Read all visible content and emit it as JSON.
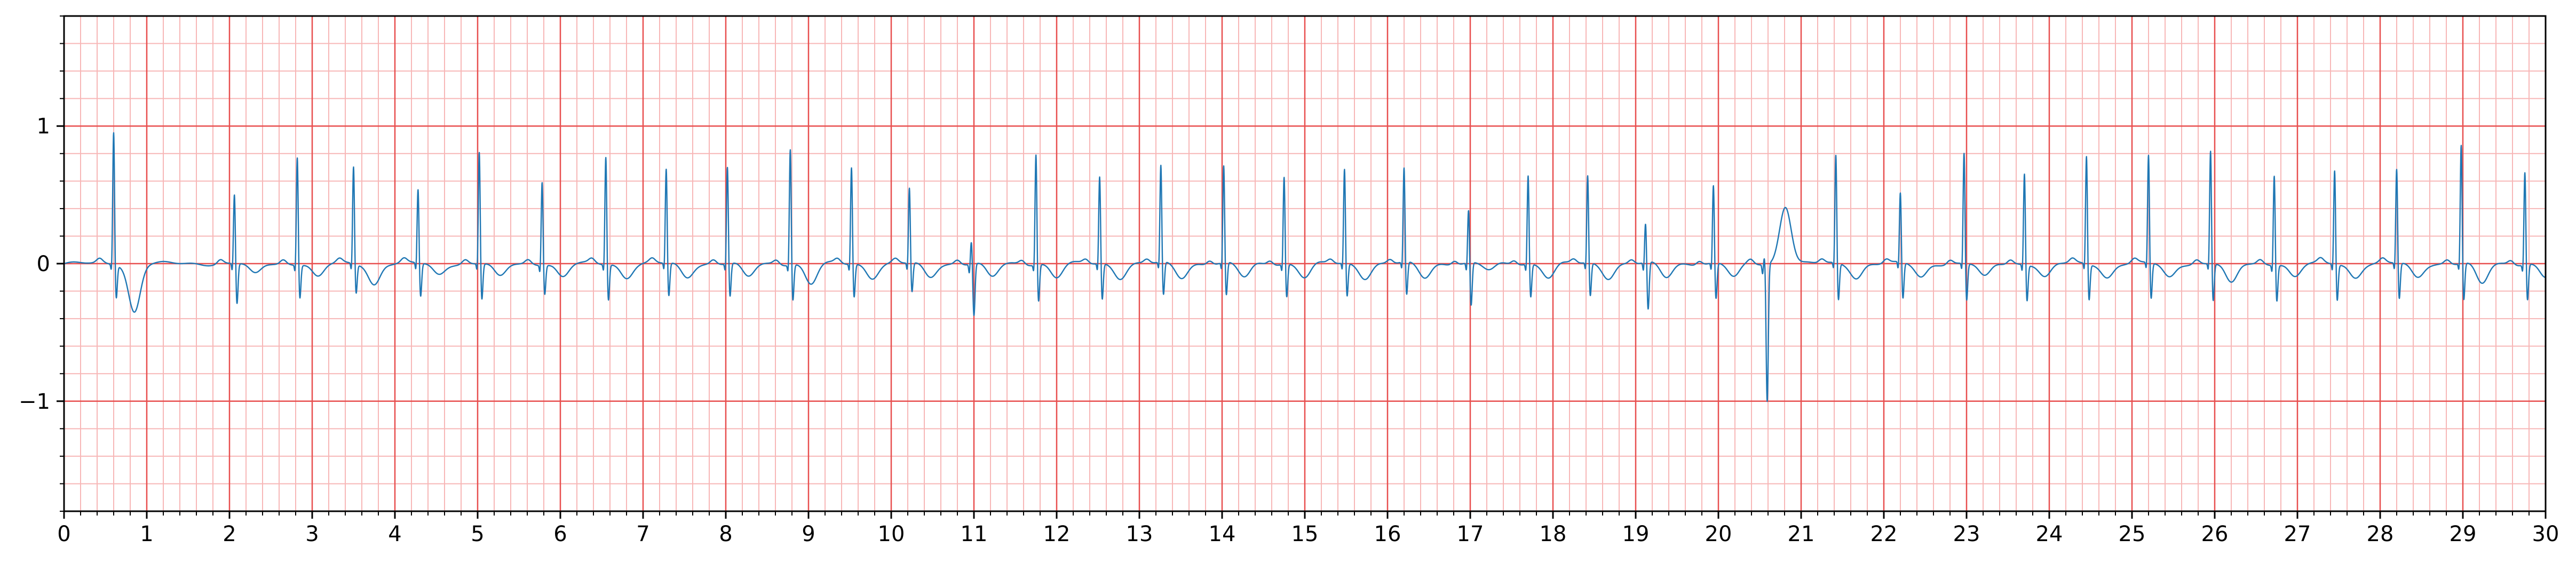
{
  "chart_data": {
    "type": "line",
    "title": "",
    "xlabel": "",
    "ylabel": "",
    "xlim": [
      0,
      30
    ],
    "ylim": [
      -1.8,
      1.8
    ],
    "x_ticks": [
      0,
      1,
      2,
      3,
      4,
      5,
      6,
      7,
      8,
      9,
      10,
      11,
      12,
      13,
      14,
      15,
      16,
      17,
      18,
      19,
      20,
      21,
      22,
      23,
      24,
      25,
      26,
      27,
      28,
      29,
      30
    ],
    "x_tick_labels": [
      "0",
      "1",
      "2",
      "3",
      "4",
      "5",
      "6",
      "7",
      "8",
      "9",
      "10",
      "11",
      "12",
      "13",
      "14",
      "15",
      "16",
      "17",
      "18",
      "19",
      "20",
      "21",
      "22",
      "23",
      "24",
      "25",
      "26",
      "27",
      "28",
      "29",
      "30"
    ],
    "y_ticks": [
      -1,
      0,
      1
    ],
    "y_tick_labels": [
      "−1",
      "0",
      "1"
    ],
    "grid": {
      "major": true,
      "minor": true,
      "major_x_step": 1,
      "major_y_step": 1,
      "minor_x_step": 0.2,
      "minor_y_step": 0.2,
      "major_color": "#e84f4f",
      "minor_color": "#f7b7b7"
    },
    "line_color": "#1f77b4",
    "background": "#ffffff",
    "series": [
      {
        "beats": [
          {
            "t": 0.6,
            "r": 0.98,
            "s": -0.25,
            "t_wave": -0.35
          },
          {
            "t": 2.06,
            "r": 0.52,
            "s": -0.3,
            "t_wave": -0.08
          },
          {
            "t": 2.82,
            "r": 0.8,
            "s": -0.25,
            "t_wave": -0.1
          },
          {
            "t": 3.5,
            "r": 0.72,
            "s": -0.22,
            "t_wave": -0.15
          },
          {
            "t": 4.28,
            "r": 0.55,
            "s": -0.25,
            "t_wave": -0.08
          },
          {
            "t": 5.02,
            "r": 0.83,
            "s": -0.27,
            "t_wave": -0.1
          },
          {
            "t": 5.78,
            "r": 0.62,
            "s": -0.22,
            "t_wave": -0.1
          },
          {
            "t": 6.55,
            "r": 0.8,
            "s": -0.27,
            "t_wave": -0.1
          },
          {
            "t": 7.28,
            "r": 0.7,
            "s": -0.25,
            "t_wave": -0.1
          },
          {
            "t": 8.02,
            "r": 0.72,
            "s": -0.25,
            "t_wave": -0.1
          },
          {
            "t": 8.78,
            "r": 0.86,
            "s": -0.27,
            "t_wave": -0.15
          },
          {
            "t": 9.52,
            "r": 0.72,
            "s": -0.25,
            "t_wave": -0.1
          },
          {
            "t": 10.22,
            "r": 0.56,
            "s": -0.22,
            "t_wave": -0.1
          },
          {
            "t": 10.97,
            "r": 0.18,
            "s": -0.38,
            "t_wave": -0.1
          },
          {
            "t": 11.75,
            "r": 0.82,
            "s": -0.28,
            "t_wave": -0.1
          },
          {
            "t": 12.52,
            "r": 0.65,
            "s": -0.27,
            "t_wave": -0.1
          },
          {
            "t": 13.26,
            "r": 0.72,
            "s": -0.25,
            "t_wave": -0.1
          },
          {
            "t": 14.02,
            "r": 0.72,
            "s": -0.25,
            "t_wave": -0.1
          },
          {
            "t": 14.75,
            "r": 0.65,
            "s": -0.25,
            "t_wave": -0.1
          },
          {
            "t": 15.48,
            "r": 0.7,
            "s": -0.25,
            "t_wave": -0.1
          },
          {
            "t": 16.2,
            "r": 0.7,
            "s": -0.25,
            "t_wave": -0.1
          },
          {
            "t": 16.98,
            "r": 0.4,
            "s": -0.32,
            "t_wave": -0.05
          },
          {
            "t": 17.7,
            "r": 0.66,
            "s": -0.25,
            "t_wave": -0.1
          },
          {
            "t": 18.42,
            "r": 0.65,
            "s": -0.25,
            "t_wave": -0.1
          },
          {
            "t": 19.12,
            "r": 0.3,
            "s": -0.35,
            "t_wave": -0.1
          },
          {
            "t": 19.94,
            "r": 0.58,
            "s": -0.27,
            "t_wave": -0.1
          },
          {
            "t": 20.56,
            "r": 0.08,
            "s": -1.0,
            "t_wave": 0.42
          },
          {
            "t": 21.42,
            "r": 0.8,
            "s": -0.28,
            "t_wave": -0.1
          },
          {
            "t": 22.2,
            "r": 0.52,
            "s": -0.27,
            "t_wave": -0.1
          },
          {
            "t": 22.97,
            "r": 0.82,
            "s": -0.28,
            "t_wave": -0.1
          },
          {
            "t": 23.7,
            "r": 0.68,
            "s": -0.27,
            "t_wave": -0.1
          },
          {
            "t": 24.45,
            "r": 0.8,
            "s": -0.27,
            "t_wave": -0.1
          },
          {
            "t": 25.2,
            "r": 0.8,
            "s": -0.27,
            "t_wave": -0.1
          },
          {
            "t": 25.95,
            "r": 0.84,
            "s": -0.28,
            "t_wave": -0.15
          },
          {
            "t": 26.72,
            "r": 0.67,
            "s": -0.27,
            "t_wave": -0.1
          },
          {
            "t": 27.45,
            "r": 0.7,
            "s": -0.27,
            "t_wave": -0.1
          },
          {
            "t": 28.2,
            "r": 0.7,
            "s": -0.27,
            "t_wave": -0.1
          },
          {
            "t": 28.98,
            "r": 0.88,
            "s": -0.28,
            "t_wave": -0.15
          },
          {
            "t": 29.75,
            "r": 0.69,
            "s": -0.27,
            "t_wave": -0.1
          }
        ]
      }
    ]
  }
}
